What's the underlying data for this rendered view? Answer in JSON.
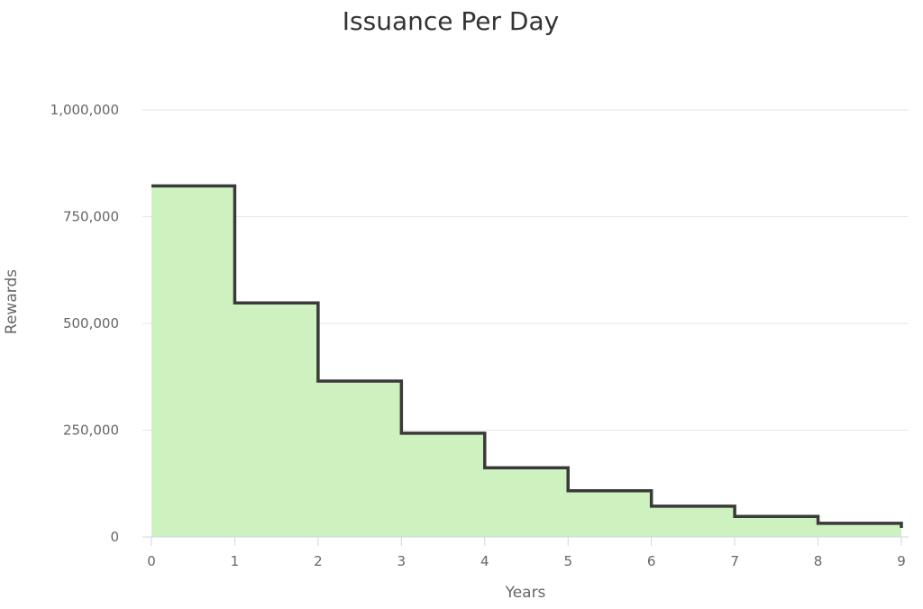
{
  "chart_data": {
    "type": "area",
    "step": true,
    "title": "Issuance Per Day",
    "xlabel": "Years",
    "ylabel": "Rewards",
    "x_ticks": [
      "0",
      "1",
      "2",
      "3",
      "4",
      "5",
      "6",
      "7",
      "8",
      "9"
    ],
    "y_ticks": [
      "0",
      "250,000",
      "500,000",
      "750,000",
      "1,000,000"
    ],
    "y_tick_values": [
      0,
      250000,
      500000,
      750000,
      1000000
    ],
    "xlim": [
      0,
      9
    ],
    "ylim": [
      0,
      1000000
    ],
    "grid": true,
    "legend": false,
    "series": [
      {
        "x": [
          0,
          1,
          2,
          3,
          4,
          5,
          6,
          7,
          8,
          9
        ],
        "values": [
          822000,
          548000,
          365000,
          243000,
          162000,
          108000,
          72000,
          48000,
          32000,
          21000
        ]
      }
    ],
    "colors": {
      "fill": "#cdf2c0",
      "line": "#3a3a3a"
    }
  }
}
